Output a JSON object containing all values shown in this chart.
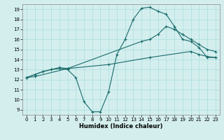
{
  "xlabel": "Humidex (Indice chaleur)",
  "background_color": "#d4eeee",
  "grid_color": "#aadddd",
  "line_color": "#1a6b6b",
  "xlim": [
    -0.5,
    23.5
  ],
  "ylim": [
    8.5,
    19.5
  ],
  "yticks": [
    9,
    10,
    11,
    12,
    13,
    14,
    15,
    16,
    17,
    18,
    19
  ],
  "xticks": [
    0,
    1,
    2,
    3,
    4,
    5,
    6,
    7,
    8,
    9,
    10,
    11,
    12,
    13,
    14,
    15,
    16,
    17,
    18,
    19,
    20,
    21,
    22,
    23
  ],
  "line1_x": [
    0,
    1,
    2,
    3,
    4,
    5,
    6,
    7,
    8,
    9,
    10,
    11,
    12,
    13,
    14,
    15,
    16,
    17,
    18,
    19,
    20,
    21,
    22,
    23
  ],
  "line1_y": [
    12.2,
    12.5,
    12.8,
    13.0,
    13.1,
    13.0,
    12.2,
    9.8,
    8.8,
    8.8,
    10.8,
    14.5,
    16.0,
    18.0,
    19.1,
    19.2,
    18.8,
    18.5,
    17.3,
    16.0,
    15.8,
    15.2,
    14.2,
    14.2
  ],
  "line2_x": [
    0,
    1,
    2,
    3,
    4,
    5,
    14,
    15,
    16,
    17,
    18,
    19,
    20,
    21,
    22,
    23
  ],
  "line2_y": [
    12.2,
    12.5,
    12.8,
    13.0,
    13.2,
    13.1,
    15.8,
    16.0,
    16.5,
    17.3,
    17.0,
    16.5,
    16.0,
    15.5,
    15.0,
    14.8
  ],
  "line3_x": [
    0,
    1,
    5,
    10,
    15,
    20,
    21,
    22,
    23
  ],
  "line3_y": [
    12.2,
    12.3,
    13.1,
    13.5,
    14.2,
    14.8,
    14.5,
    14.3,
    14.2
  ]
}
